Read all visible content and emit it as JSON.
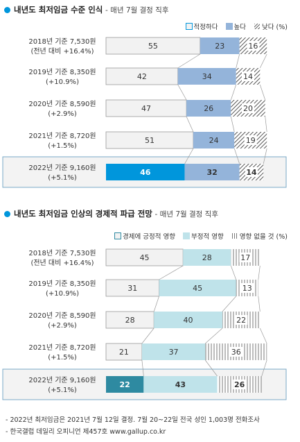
{
  "footer": {
    "line1": "- 2022년 최저임금은 2021년 7월 12일 결정. 7월 20~22일 전국 성인 1,003명 전화조사",
    "line2": "- 한국갤럽 데일리 오피니언 제457호 www.gallup.co.kr"
  },
  "chart_data": [
    {
      "type": "bar",
      "stacked": true,
      "orientation": "horizontal",
      "title": "내년도 최저임금 수준 인식",
      "subtitle": "- 매년 7월 결정 직후",
      "categories": [
        [
          "2018년 기준 7,530원",
          "(전년 대비 +16.4%)"
        ],
        [
          "2019년 기준 8,350원",
          "(+10.9%)"
        ],
        [
          "2020년 기준 8,590원",
          "(+2.9%)"
        ],
        [
          "2021년 기준 8,720원",
          "(+1.5%)"
        ],
        [
          "2022년 기준 9,160원",
          "(+5.1%)"
        ]
      ],
      "series": [
        {
          "name": "적정하다",
          "values": [
            55,
            42,
            47,
            51,
            46
          ],
          "color": "#f2f2f2",
          "highlight_color": "#0096dc"
        },
        {
          "name": "높다",
          "values": [
            23,
            34,
            26,
            24,
            32
          ],
          "color": "#94b4da"
        },
        {
          "name": "낮다 (%)",
          "values": [
            16,
            14,
            20,
            19,
            14
          ],
          "color": "hatch"
        }
      ],
      "legend": "top-right",
      "highlight_row": 4
    },
    {
      "type": "bar",
      "stacked": true,
      "orientation": "horizontal",
      "title": "내년도 최저임금 인상의 경제적 파급 전망",
      "subtitle": "- 매년 7월 결정 직후",
      "categories": [
        [
          "2018년 기준 7,530원",
          "(전년 대비 +16.4%)"
        ],
        [
          "2019년 기준 8,350원",
          "(+10.9%)"
        ],
        [
          "2020년 기준 8,590원",
          "(+2.9%)"
        ],
        [
          "2021년 기준 8,720원",
          "(+1.5%)"
        ],
        [
          "2022년 기준 9,160원",
          "(+5.1%)"
        ]
      ],
      "series": [
        {
          "name": "경제에 긍정적 영향",
          "values": [
            45,
            31,
            28,
            21,
            22
          ],
          "color": "#f2f2f2",
          "highlight_color": "#2e8aa1"
        },
        {
          "name": "부정적 영향",
          "values": [
            28,
            45,
            40,
            37,
            43
          ],
          "color": "#bfe3ea"
        },
        {
          "name": "영향 없을 것 (%)",
          "values": [
            17,
            13,
            22,
            36,
            26
          ],
          "color": "vlines"
        }
      ],
      "legend": "top-right",
      "highlight_row": 4
    }
  ]
}
